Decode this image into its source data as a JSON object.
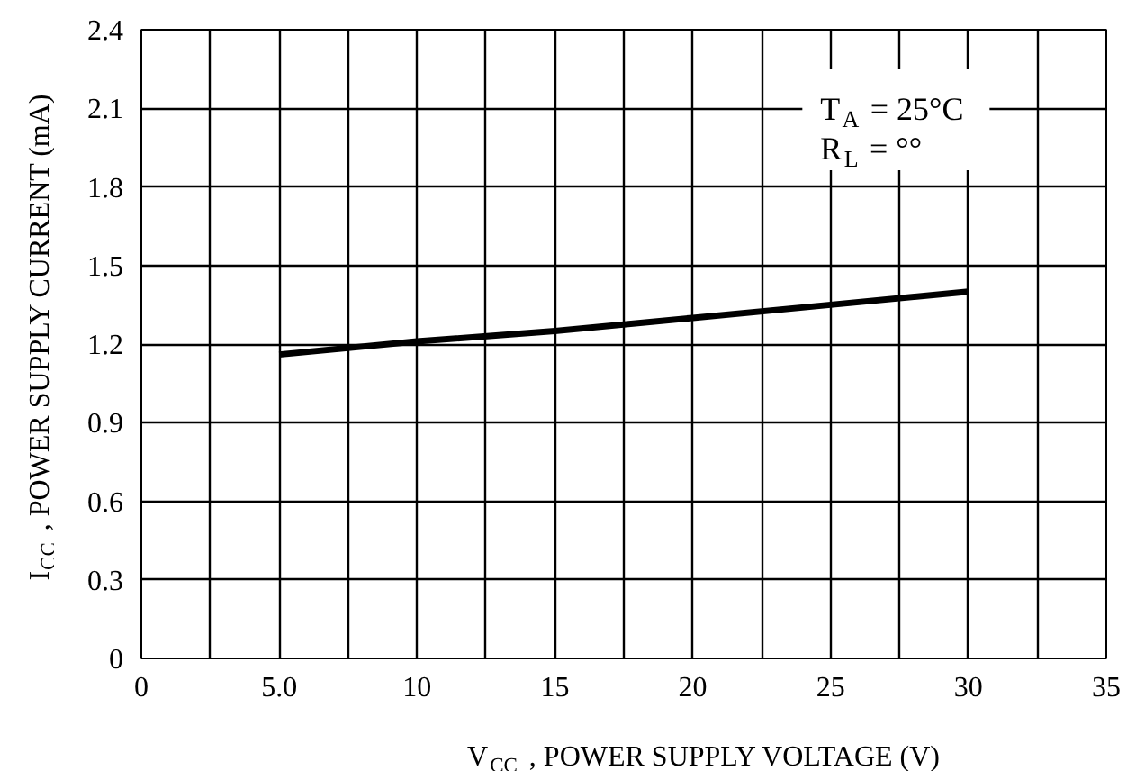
{
  "chart_data": {
    "type": "line",
    "xlabel": "V$_{CC}$, POWER  SUPPLY  VOLTAGE (V)",
    "ylabel": "I$_{CC}$, POWER SUPPLY CURRENT (mA)",
    "x": [
      5,
      10,
      15,
      20,
      25,
      30
    ],
    "series": [
      {
        "color": "#000000",
        "values": [
          1.16,
          1.21,
          1.25,
          1.3,
          1.35,
          1.4
        ]
      }
    ],
    "xlim": [
      0,
      35
    ],
    "ylim": [
      0,
      2.4
    ],
    "xticks": [
      0,
      {
        "value": 2.5,
        "label": null
      },
      {
        "value": 5,
        "label": "5.0"
      },
      {
        "value": 7.5,
        "label": null
      },
      10,
      {
        "value": 12.5,
        "label": null
      },
      15,
      {
        "value": 17.5,
        "label": null
      },
      20,
      {
        "value": 22.5,
        "label": null
      },
      25,
      {
        "value": 27.5,
        "label": null
      },
      30,
      {
        "value": 32.5,
        "label": null
      },
      35
    ],
    "yticks": [
      0,
      0.3,
      0.6,
      0.9,
      1.2,
      1.5,
      1.8,
      2.1,
      2.4
    ],
    "annotations": [
      "T$_{A}$ = 25°C",
      "R$_{L}$ = °°"
    ],
    "grid": true,
    "marker": "none",
    "line_style": "solid"
  }
}
